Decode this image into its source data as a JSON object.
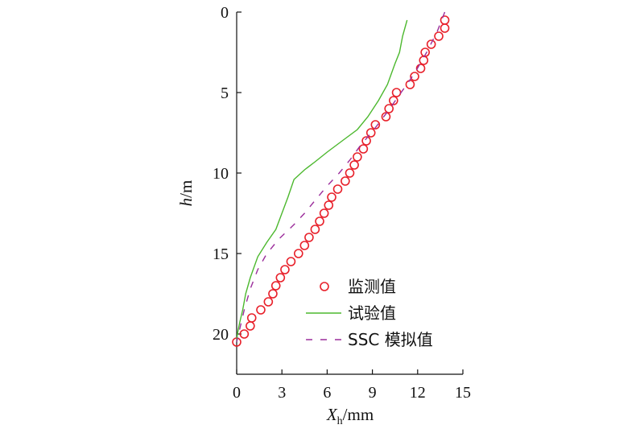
{
  "chart_data": {
    "type": "line",
    "x_axis": {
      "label_main": "X",
      "label_sub": "h",
      "label_unit": "/mm",
      "range": [
        0,
        15
      ],
      "ticks": [
        0,
        3,
        6,
        9,
        12,
        15
      ]
    },
    "y_axis": {
      "label_main": "h",
      "label_unit": "/m",
      "range": [
        0,
        22.5
      ],
      "inverted": true,
      "ticks": [
        0,
        5,
        10,
        15,
        20
      ]
    },
    "legend_position": "bottom-right",
    "grid": false,
    "series": [
      {
        "name": "监测值",
        "style": "markers",
        "marker": "open-circle",
        "color": "#e8202a",
        "points": [
          [
            13.8,
            0.5
          ],
          [
            13.8,
            1.0
          ],
          [
            13.4,
            1.5
          ],
          [
            12.9,
            2.0
          ],
          [
            12.5,
            2.5
          ],
          [
            12.4,
            3.0
          ],
          [
            12.2,
            3.5
          ],
          [
            11.8,
            4.0
          ],
          [
            11.5,
            4.5
          ],
          [
            10.6,
            5.0
          ],
          [
            10.4,
            5.5
          ],
          [
            10.1,
            6.0
          ],
          [
            9.9,
            6.5
          ],
          [
            9.2,
            7.0
          ],
          [
            8.9,
            7.5
          ],
          [
            8.6,
            8.0
          ],
          [
            8.4,
            8.5
          ],
          [
            8.0,
            9.0
          ],
          [
            7.8,
            9.5
          ],
          [
            7.5,
            10.0
          ],
          [
            7.2,
            10.5
          ],
          [
            6.7,
            11.0
          ],
          [
            6.3,
            11.5
          ],
          [
            6.1,
            12.0
          ],
          [
            5.8,
            12.5
          ],
          [
            5.5,
            13.0
          ],
          [
            5.2,
            13.5
          ],
          [
            4.8,
            14.0
          ],
          [
            4.5,
            14.5
          ],
          [
            4.1,
            15.0
          ],
          [
            3.6,
            15.5
          ],
          [
            3.2,
            16.0
          ],
          [
            2.9,
            16.5
          ],
          [
            2.6,
            17.0
          ],
          [
            2.4,
            17.5
          ],
          [
            2.1,
            18.0
          ],
          [
            1.6,
            18.5
          ],
          [
            1.0,
            19.0
          ],
          [
            0.9,
            19.5
          ],
          [
            0.5,
            20.0
          ],
          [
            0.0,
            20.5
          ]
        ]
      },
      {
        "name": "试验值",
        "style": "solid",
        "color": "#4cb82e",
        "points": [
          [
            11.3,
            0.5
          ],
          [
            11.0,
            1.5
          ],
          [
            10.8,
            2.5
          ],
          [
            10.5,
            3.2
          ],
          [
            10.0,
            4.5
          ],
          [
            9.4,
            5.5
          ],
          [
            8.7,
            6.5
          ],
          [
            8.0,
            7.3
          ],
          [
            7.0,
            8.0
          ],
          [
            6.0,
            8.7
          ],
          [
            5.2,
            9.3
          ],
          [
            4.5,
            9.8
          ],
          [
            3.8,
            10.4
          ],
          [
            3.4,
            11.5
          ],
          [
            3.0,
            12.5
          ],
          [
            2.6,
            13.5
          ],
          [
            2.0,
            14.3
          ],
          [
            1.4,
            15.2
          ],
          [
            0.9,
            16.5
          ],
          [
            0.6,
            17.5
          ],
          [
            0.4,
            18.5
          ],
          [
            0.2,
            19.3
          ],
          [
            0.05,
            20.0
          ],
          [
            0.0,
            20.5
          ]
        ]
      },
      {
        "name": "SSC 模拟值",
        "style": "dashed",
        "color": "#9b2d9b",
        "points": [
          [
            13.8,
            0.0
          ],
          [
            13.3,
            1.2
          ],
          [
            12.6,
            2.5
          ],
          [
            11.8,
            3.8
          ],
          [
            10.9,
            5.0
          ],
          [
            10.0,
            6.2
          ],
          [
            9.1,
            7.3
          ],
          [
            8.2,
            8.3
          ],
          [
            7.5,
            9.2
          ],
          [
            6.8,
            10.0
          ],
          [
            6.0,
            10.8
          ],
          [
            5.2,
            11.7
          ],
          [
            4.5,
            12.5
          ],
          [
            3.8,
            13.2
          ],
          [
            2.8,
            14.1
          ],
          [
            2.0,
            15.0
          ],
          [
            1.4,
            16.0
          ],
          [
            0.9,
            17.2
          ],
          [
            0.5,
            18.5
          ],
          [
            0.25,
            19.5
          ],
          [
            0.0,
            20.5
          ]
        ]
      }
    ]
  }
}
